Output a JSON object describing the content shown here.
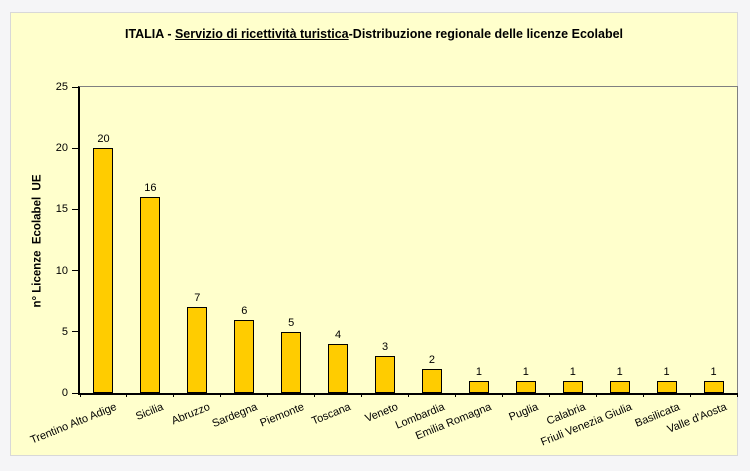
{
  "title": {
    "prefix": "ITALIA - ",
    "underlined": "Servizio di ricettività turistica",
    "suffix": "-Distribuzione regionale delle licenze Ecolabel"
  },
  "colors": {
    "page_background": "#f5f5f7",
    "chart_background": "#ffffcc",
    "bar_fill": "#ffcc00",
    "bar_border": "#000000",
    "plot_border": "#808080",
    "axis": "#000000",
    "text": "#000000"
  },
  "chart_data": {
    "type": "bar",
    "title": "ITALIA - Servizio di ricettività turistica-Distribuzione regionale delle licenze Ecolabel",
    "categories": [
      "Trentino Alto Adige",
      "Sicilia",
      "Abruzzo",
      "Sardegna",
      "Piemonte",
      "Toscana",
      "Veneto",
      "Lombardia",
      "Emilia Romagna",
      "Puglia",
      "Calabria",
      "Friuli Venezia Giulia",
      "Basilicata",
      "Valle d'Aosta"
    ],
    "values": [
      20,
      16,
      7,
      6,
      5,
      4,
      3,
      2,
      1,
      1,
      1,
      1,
      1,
      1
    ],
    "data_labels": [
      20,
      16,
      7,
      6,
      5,
      4,
      3,
      2,
      1,
      1,
      1,
      1,
      1,
      1
    ],
    "xlabel": "",
    "ylabel": "n° Licenze  Ecolabel  UE",
    "ylim": [
      0,
      25
    ],
    "yticks": [
      0,
      5,
      10,
      15,
      20,
      25
    ],
    "grid": false,
    "legend": false,
    "bar_label_position": "above",
    "x_label_rotation_deg": -22
  }
}
